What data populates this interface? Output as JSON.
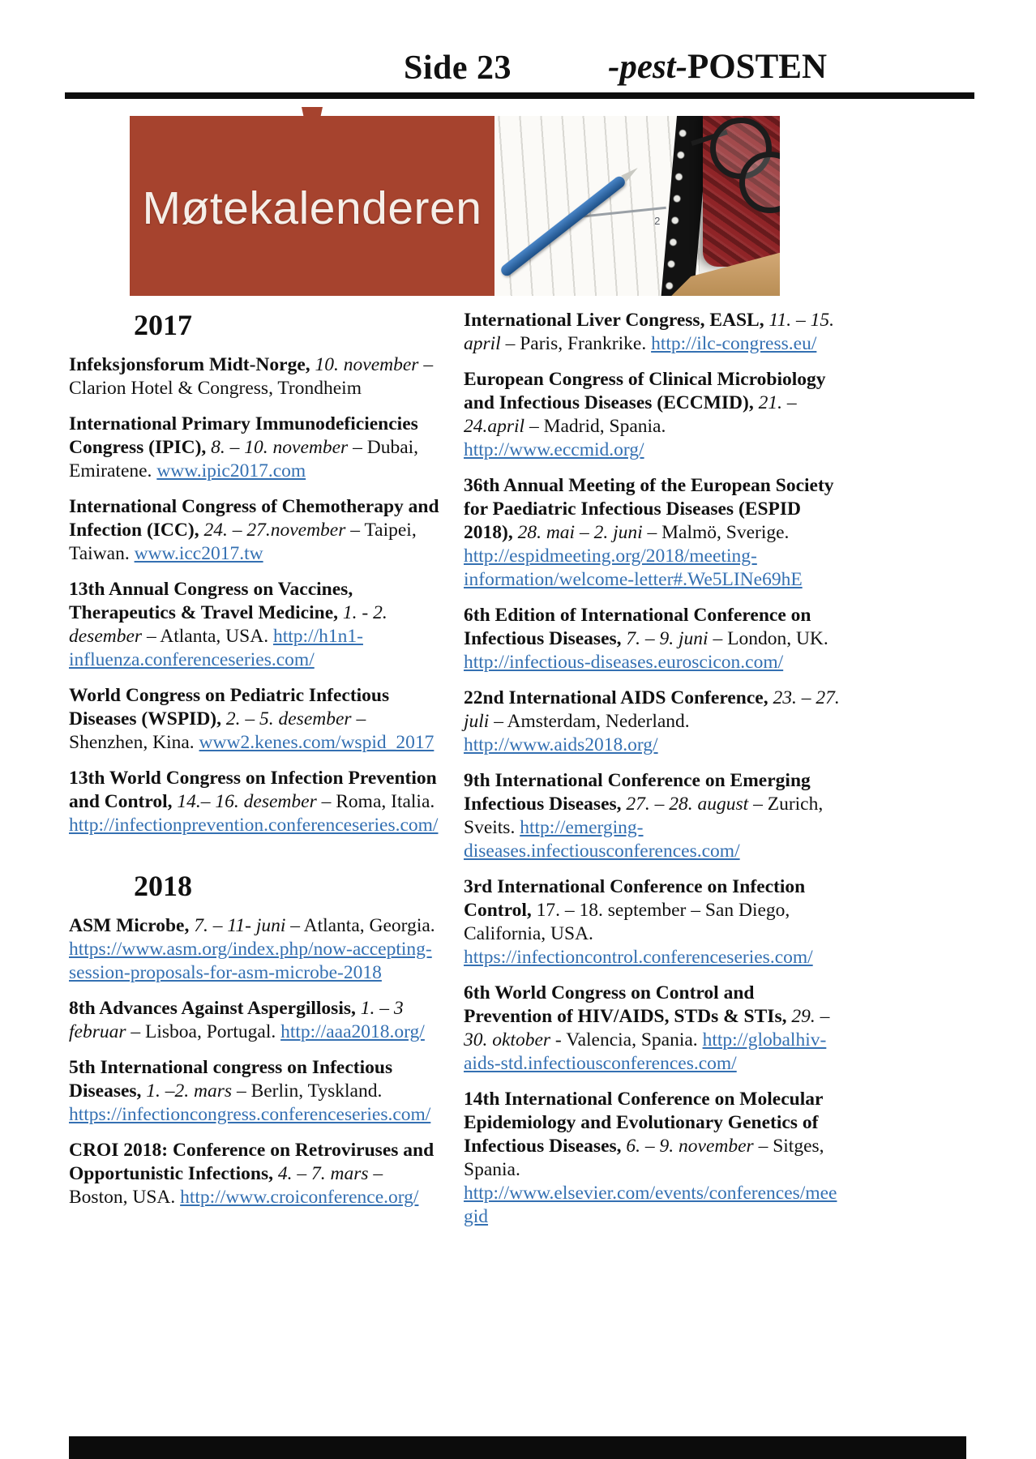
{
  "header": {
    "page_label": "Side 23",
    "brand_italic": "-pest-",
    "brand_rest": "POSTEN"
  },
  "banner": {
    "title": "Møtekalenderen",
    "photo_day": "2"
  },
  "colors": {
    "banner_bg": "#A6432E",
    "link": "#3470B2",
    "footer_bar": "#0C0C0C"
  },
  "columns": {
    "left": [
      {
        "type": "year",
        "text": "2017"
      },
      {
        "type": "entry",
        "title": "Infeksjonsforum Midt-Norge,",
        "date": " 10. november",
        "date_italic": true,
        "text": " – Clarion Hotel & Congress, Trondheim",
        "link": ""
      },
      {
        "type": "entry",
        "title": "International Primary Immunodeficiencies Congress (IPIC),",
        "date": " 8. – 10. november",
        "date_italic": true,
        "text": " – Dubai, Emiratene. ",
        "link": "www.ipic2017.com"
      },
      {
        "type": "entry",
        "title": "International Congress of Chemotherapy and Infection (ICC),",
        "date": " 24. – 27.november",
        "date_italic": true,
        "text": " – Taipei, Taiwan. ",
        "link": "www.icc2017.tw"
      },
      {
        "type": "entry",
        "title": "13th Annual Congress on Vaccines, Therapeutics & Travel Medicine,",
        "date": " 1. -  2. desember",
        "date_italic": true,
        "text": " – Atlanta, USA. ",
        "link": "http://h1n1-influenza.conferenceseries.com/"
      },
      {
        "type": "entry",
        "title": "World Congress on Pediatric Infectious Diseases (WSPID),",
        "date": " 2. – 5. desember",
        "date_italic": true,
        "text": " – Shenzhen, Kina. ",
        "link": "www2.kenes.com/wspid_2017"
      },
      {
        "type": "entry",
        "title": "13th World Congress on Infection Prevention and Control,",
        "date": " 14.– 16. desember",
        "date_italic": true,
        "text": " – Roma, Italia. ",
        "link": "http://infectionprevention.conferenceseries.com/"
      },
      {
        "type": "year",
        "text": "2018",
        "extra_space": true
      },
      {
        "type": "entry",
        "title": "ASM Microbe,",
        "date": " 7. – 11- juni",
        "date_italic": true,
        "text": " – Atlanta, Georgia. ",
        "link": "https://www.asm.org/index.php/now-accepting-session-proposals-for-asm-microbe-2018"
      },
      {
        "type": "entry",
        "title": "8th Advances Against Aspergillosis,",
        "date": " 1. – 3 februar",
        "date_italic": true,
        "text": " – Lisboa, Portugal. ",
        "link": "http://aaa2018.org/"
      },
      {
        "type": "entry",
        "title": "5th International congress on Infectious Diseases,",
        "date": " 1. –2. mars",
        "date_italic": true,
        "text": " – Berlin, Tyskland. ",
        "link": "https://infectioncongress.conferenceseries.com/"
      },
      {
        "type": "entry",
        "title": "CROI 2018: Conference on Retroviruses and Opportunistic Infections,",
        "date": " 4. – 7. mars",
        "date_italic": true,
        "text": " – Boston, USA. ",
        "link": "http://www.croiconference.org/"
      }
    ],
    "right": [
      {
        "type": "entry",
        "title": "International Liver Congress, EASL,",
        "date": " 11. – 15. april",
        "date_italic": true,
        "text": " – Paris, Frankrike. ",
        "link": "http://ilc-congress.eu/"
      },
      {
        "type": "entry",
        "title": "European Congress of Clinical Microbiology and Infectious Diseases (ECCMID),",
        "date": " 21. – 24.april",
        "date_italic": true,
        "text": " – Madrid, Spania. ",
        "link": "http://www.eccmid.org/"
      },
      {
        "type": "entry",
        "title": "36th Annual Meeting of the European Society for Paediatric Infectious Diseases (ESPID 2018),",
        "date": " 28. mai – 2. juni",
        "date_italic": true,
        "text": " – Malmö, Sverige. ",
        "link": "http://espidmeeting.org/2018/meeting-information/welcome-letter#.We5LINe69hE"
      },
      {
        "type": "entry",
        "title": "6th Edition of International Conference on Infectious Diseases,",
        "date": " 7. – 9. juni",
        "date_italic": true,
        "text": " – London, UK. ",
        "link": "http://infectious-diseases.euroscicon.com/"
      },
      {
        "type": "entry",
        "title": "22nd International AIDS Conference,",
        "date": " 23. – 27. juli",
        "date_italic": true,
        "text": " – Amsterdam, Nederland. ",
        "link": "http://www.aids2018.org/"
      },
      {
        "type": "entry",
        "title": "9th International Conference on Emerging Infectious Diseases,",
        "date": " 27. – 28. august",
        "date_italic": true,
        "text": " – Zurich, Sveits. ",
        "link": "http://emerging-diseases.infectiousconferences.com/"
      },
      {
        "type": "entry",
        "title": "3rd International Conference on Infection Control,",
        "date": " 17. – 18. september",
        "date_italic": false,
        "text": " – San Diego, California, USA. ",
        "link": "https://infectioncontrol.conferenceseries.com/"
      },
      {
        "type": "entry",
        "title": "6th World Congress on Control and Prevention of HIV/AIDS, STDs & STIs,",
        "date": " 29.  – 30. oktober",
        "date_italic": true,
        "text": " - Valencia, Spania. ",
        "link": "http://globalhiv-aids-std.infectiousconferences.com/"
      },
      {
        "type": "entry",
        "title": "14th International Conference on Molecular Epidemiology and Evolutionary Genetics of Infectious Diseases,",
        "date": " 6. – 9. november",
        "date_italic": true,
        "text": " – Sitges, Spania.  ",
        "link": "http://www.elsevier.com/events/conferences/meegid"
      }
    ]
  }
}
